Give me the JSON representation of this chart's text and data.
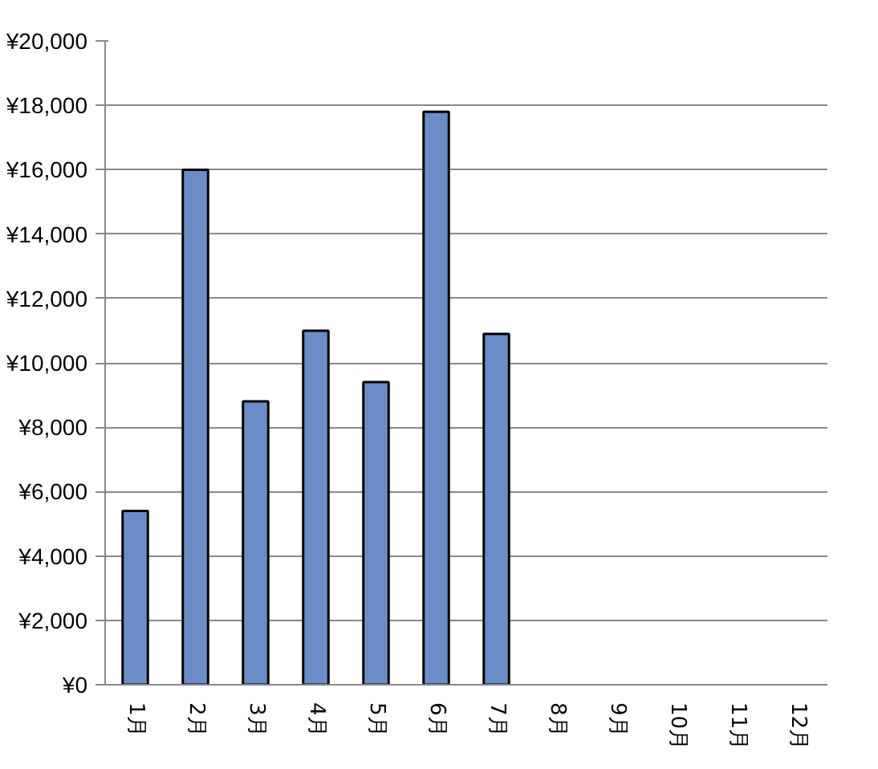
{
  "chart_data": {
    "type": "bar",
    "categories": [
      "1月",
      "2月",
      "3月",
      "4月",
      "5月",
      "6月",
      "7月",
      "8月",
      "9月",
      "10月",
      "11月",
      "12月"
    ],
    "values": [
      5400,
      16000,
      8800,
      11000,
      9400,
      17800,
      10900,
      null,
      null,
      null,
      null,
      null
    ],
    "color": "#6b8cc7",
    "ylim": [
      0,
      20000
    ],
    "yticks": [
      {
        "value": 0,
        "label": "¥0"
      },
      {
        "value": 2000,
        "label": "¥2,000"
      },
      {
        "value": 4000,
        "label": "¥4,000"
      },
      {
        "value": 6000,
        "label": "¥6,000"
      },
      {
        "value": 8000,
        "label": "¥8,000"
      },
      {
        "value": 10000,
        "label": "¥10,000"
      },
      {
        "value": 12000,
        "label": "¥12,000"
      },
      {
        "value": 14000,
        "label": "¥14,000"
      },
      {
        "value": 16000,
        "label": "¥16,000"
      },
      {
        "value": 18000,
        "label": "¥18,000"
      },
      {
        "value": 20000,
        "label": "¥20,000"
      }
    ],
    "grid": "y"
  }
}
